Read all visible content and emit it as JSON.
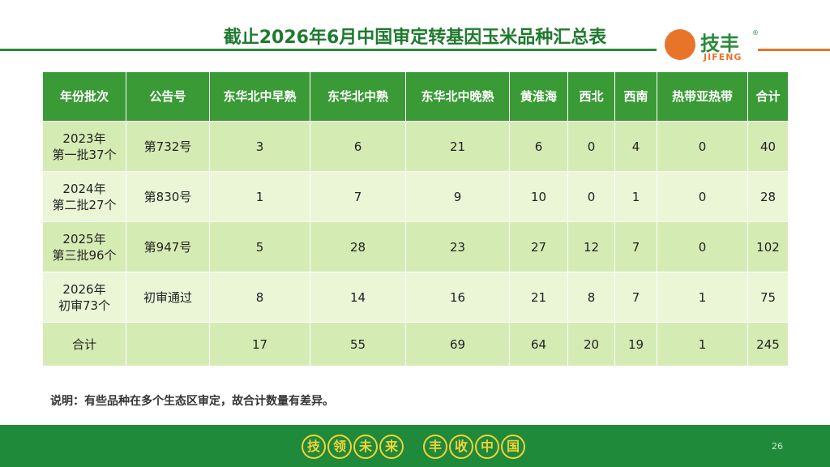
{
  "header": {
    "title": "截止2026年6月中国审定转基因玉米品种汇总表",
    "logo": {
      "name": "技丰",
      "brand": "JIFENG",
      "mark": "®"
    }
  },
  "table": {
    "columns": [
      "年份批次",
      "公告号",
      "东华北中早熟",
      "东华北中熟",
      "东华北中晚熟",
      "黄淮海",
      "西北",
      "西南",
      "热带亚热带",
      "合计"
    ],
    "rows": [
      [
        [
          "2023年",
          "第一批37个"
        ],
        "第732号",
        3,
        6,
        21,
        6,
        0,
        4,
        0,
        40
      ],
      [
        [
          "2024年",
          "第二批27个"
        ],
        "第830号",
        1,
        7,
        9,
        10,
        0,
        1,
        0,
        28
      ],
      [
        [
          "2025年",
          "第三批96个"
        ],
        "第947号",
        5,
        28,
        23,
        27,
        12,
        7,
        0,
        102
      ],
      [
        [
          "2026年",
          "初审73个"
        ],
        "初审通过",
        8,
        14,
        16,
        21,
        8,
        7,
        1,
        75
      ],
      [
        "合计",
        null,
        17,
        55,
        69,
        64,
        20,
        19,
        1,
        245
      ]
    ]
  },
  "note": "说明：有些品种在多个生态区审定，故合计数量有差异。",
  "footer": {
    "slogan": [
      "技",
      "领",
      "未",
      "来",
      "丰",
      "收",
      "中",
      "国"
    ],
    "page": 26
  }
}
